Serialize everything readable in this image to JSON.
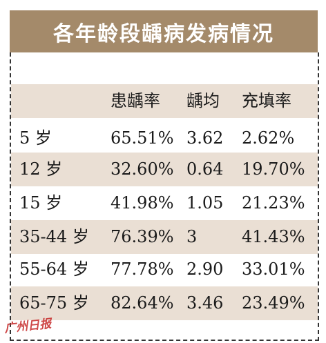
{
  "title": "各年龄段龋病发病情况",
  "table": {
    "headers": [
      "",
      "患龋率",
      "龋均",
      "充填率"
    ],
    "rows": [
      [
        "5 岁",
        "65.51%",
        "3.62",
        "2.62%"
      ],
      [
        "12 岁",
        "32.60%",
        "0.64",
        "19.70%"
      ],
      [
        "15 岁",
        "41.98%",
        "1.05",
        "21.23%"
      ],
      [
        "35-44 岁",
        "76.39%",
        "3",
        "41.43%"
      ],
      [
        "55-64 岁",
        "77.78%",
        "2.90",
        "33.01%"
      ],
      [
        "65-75 岁",
        "82.64%",
        "3.46",
        "23.49%"
      ]
    ]
  },
  "watermark": "广州日报",
  "colors": {
    "title_bg": "#a48a6a",
    "stripe": "#eadfd4",
    "watermark": "#c62828"
  }
}
